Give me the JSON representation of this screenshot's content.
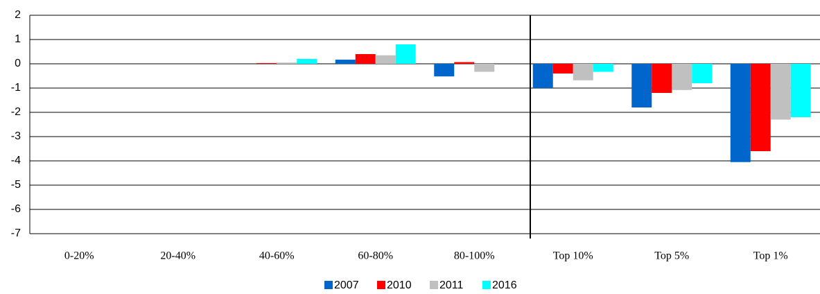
{
  "chart_data": {
    "type": "bar",
    "categories": [
      "0-20%",
      "20-40%",
      "40-60%",
      "60-80%",
      "80-100%",
      "Top 10%",
      "Top 5%",
      "Top 1%"
    ],
    "series": [
      {
        "name": "2007",
        "color": "#0066cc",
        "values": [
          0,
          0,
          0,
          0.17,
          -0.52,
          -1.0,
          -1.8,
          -4.05
        ]
      },
      {
        "name": "2010",
        "color": "#ff0000",
        "values": [
          0,
          0,
          0.03,
          0.4,
          0.07,
          -0.4,
          -1.2,
          -3.6
        ]
      },
      {
        "name": "2011",
        "color": "#c0c0c0",
        "values": [
          0,
          0,
          0.05,
          0.35,
          -0.33,
          -0.68,
          -1.08,
          -2.3
        ]
      },
      {
        "name": "2016",
        "color": "#00ffff",
        "values": [
          0,
          0,
          0.2,
          0.8,
          0,
          -0.33,
          -0.8,
          -2.2
        ]
      }
    ],
    "ylim": [
      -7,
      2
    ],
    "yticks": [
      -7,
      -6,
      -5,
      -4,
      -3,
      -2,
      -1,
      0,
      1,
      2
    ],
    "grid": true
  }
}
